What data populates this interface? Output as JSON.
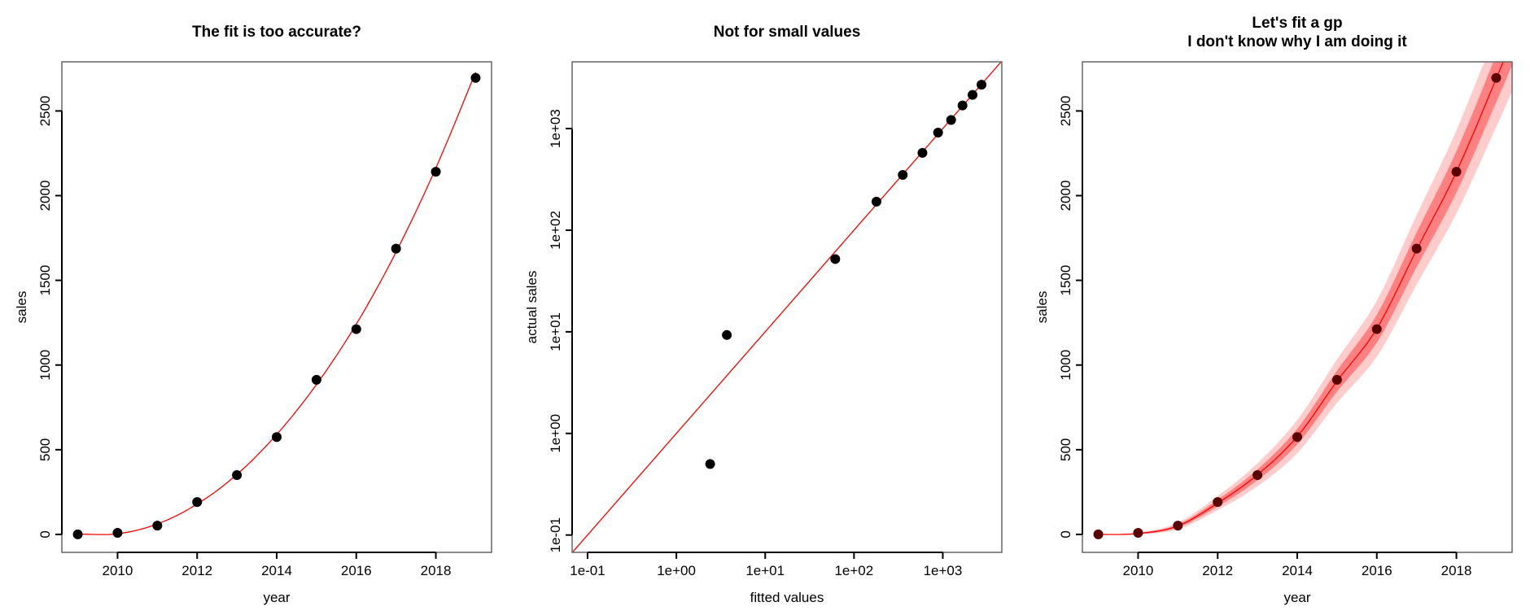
{
  "chart_data": [
    {
      "type": "scatter",
      "title": [
        "The fit is too accurate?"
      ],
      "xlabel": "year",
      "ylabel": "sales",
      "x": [
        2009,
        2010,
        2011,
        2012,
        2013,
        2014,
        2015,
        2016,
        2017,
        2018,
        2019
      ],
      "points": [
        0.5,
        9,
        52,
        191,
        350,
        575,
        913,
        1212,
        1687,
        2141,
        2695
      ],
      "fit_line": [
        2.4,
        3.7,
        61.5,
        179,
        354,
        590,
        885,
        1241,
        1667,
        2163,
        2729
      ],
      "xlim": [
        2008.6,
        2019.4
      ],
      "ylim": [
        -106,
        2790
      ],
      "xticks": [
        2010,
        2012,
        2014,
        2016,
        2018
      ],
      "xtick_labels": [
        "2010",
        "2012",
        "2014",
        "2016",
        "2018"
      ],
      "yticks": [
        0,
        500,
        1000,
        1500,
        2000,
        2500
      ],
      "ytick_labels": [
        "0",
        "500",
        "1000",
        "1500",
        "2000",
        "2500"
      ],
      "grid": false,
      "colors": {
        "points": "#000000",
        "fit_line": "#ff0000"
      }
    },
    {
      "type": "scatter",
      "title": [
        "Not for small values"
      ],
      "xlabel": "fitted values",
      "ylabel": "actual sales",
      "x_scale": "log",
      "y_scale": "log",
      "x": [
        2.4,
        3.7,
        61.5,
        179,
        354,
        590,
        885,
        1241,
        1667,
        2163,
        2729
      ],
      "points": [
        0.5,
        9.3,
        52,
        191,
        350,
        577,
        914,
        1216,
        1690,
        2146,
        2704
      ],
      "reference_line": "y = x",
      "xlim": [
        0.067,
        4620
      ],
      "ylim": [
        0.0675,
        4540
      ],
      "xticks": [
        0.1,
        1,
        10,
        100,
        1000
      ],
      "xtick_labels": [
        "1e-01",
        "1e+00",
        "1e+01",
        "1e+02",
        "1e+03"
      ],
      "yticks": [
        0.1,
        1,
        10,
        100,
        1000
      ],
      "ytick_labels": [
        "1e-01",
        "1e+00",
        "1e+01",
        "1e+02",
        "1e+03"
      ],
      "grid": false,
      "colors": {
        "points": "#000000",
        "reference_line": "#ff0000"
      }
    },
    {
      "type": "area",
      "title": [
        "Let's fit a gp",
        "I don't know why I am doing it"
      ],
      "xlabel": "year",
      "ylabel": "sales",
      "x": [
        2009,
        2010,
        2011,
        2012,
        2013,
        2014,
        2015,
        2016,
        2017,
        2018,
        2019,
        2019.4
      ],
      "mean": [
        0,
        5,
        50,
        185,
        352,
        578,
        905,
        1215,
        1680,
        2140,
        2690,
        2920
      ],
      "inner_band_halfwidth": [
        0,
        3,
        9,
        20,
        32,
        46,
        62,
        82,
        102,
        122,
        140,
        150
      ],
      "outer_band_halfwidth": [
        0,
        6,
        20,
        42,
        68,
        98,
        128,
        165,
        205,
        245,
        285,
        305
      ],
      "point_x": [
        2009,
        2010,
        2011,
        2012,
        2013,
        2014,
        2015,
        2016,
        2017,
        2018,
        2019
      ],
      "points": [
        0.5,
        9,
        52,
        191,
        350,
        575,
        913,
        1212,
        1687,
        2141,
        2695
      ],
      "xlim": [
        2008.6,
        2019.4
      ],
      "ylim": [
        -106,
        2790
      ],
      "xticks": [
        2010,
        2012,
        2014,
        2016,
        2018
      ],
      "xtick_labels": [
        "2010",
        "2012",
        "2014",
        "2016",
        "2018"
      ],
      "yticks": [
        0,
        500,
        1000,
        1500,
        2000,
        2500
      ],
      "ytick_labels": [
        "0",
        "500",
        "1000",
        "1500",
        "2000",
        "2500"
      ],
      "grid": false,
      "colors": {
        "outer_band": "#ffcccc",
        "inner_band": "#ff8080",
        "mean_line": "#ff0000",
        "points": "#5a0000"
      }
    }
  ]
}
